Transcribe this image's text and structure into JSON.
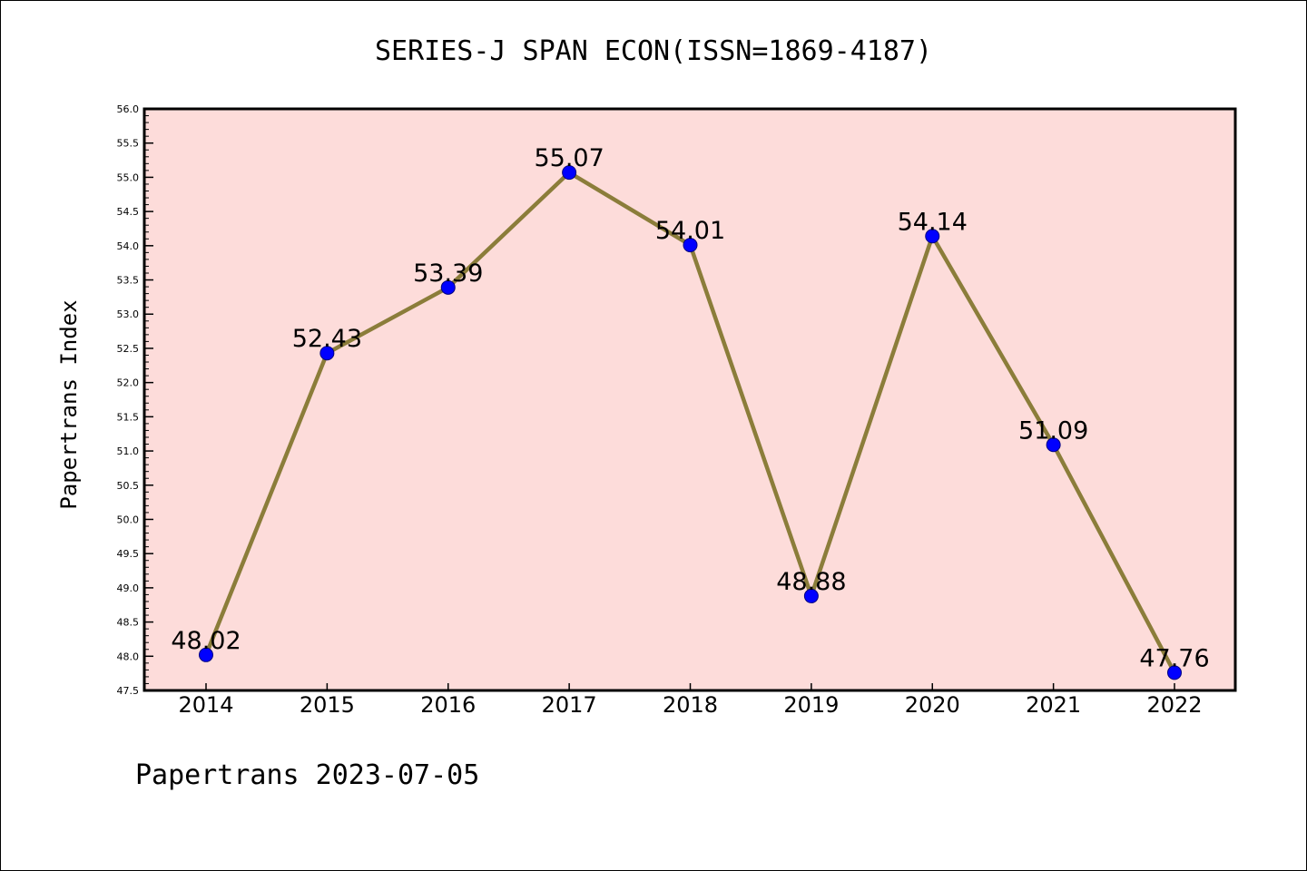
{
  "chart_data": {
    "type": "line",
    "title": "SERIES-J SPAN ECON(ISSN=1869-4187)",
    "xlabel": "",
    "ylabel": "Papertrans Index",
    "categories": [
      "2014",
      "2015",
      "2016",
      "2017",
      "2018",
      "2019",
      "2020",
      "2021",
      "2022"
    ],
    "values": [
      48.02,
      52.43,
      53.39,
      55.07,
      54.01,
      48.88,
      54.14,
      51.09,
      47.76
    ],
    "data_labels": [
      "48.02",
      "52.43",
      "53.39",
      "55.07",
      "54.01",
      "48.88",
      "54.14",
      "51.09",
      "47.76"
    ],
    "ylim": [
      47.5,
      56.0
    ],
    "yticks": [
      "47.5",
      "48.0",
      "48.5",
      "49.0",
      "49.5",
      "50.0",
      "50.5",
      "51.0",
      "51.5",
      "52.0",
      "52.5",
      "53.0",
      "53.5",
      "54.0",
      "54.5",
      "55.0",
      "55.5",
      "56.0"
    ],
    "grid": false,
    "colors": {
      "plot_background": "#fddcda",
      "line": "#8b7d3a",
      "marker": "#0000ff",
      "marker_edge": "#000080"
    }
  },
  "footer": {
    "text": "Papertrans 2023-07-05"
  }
}
